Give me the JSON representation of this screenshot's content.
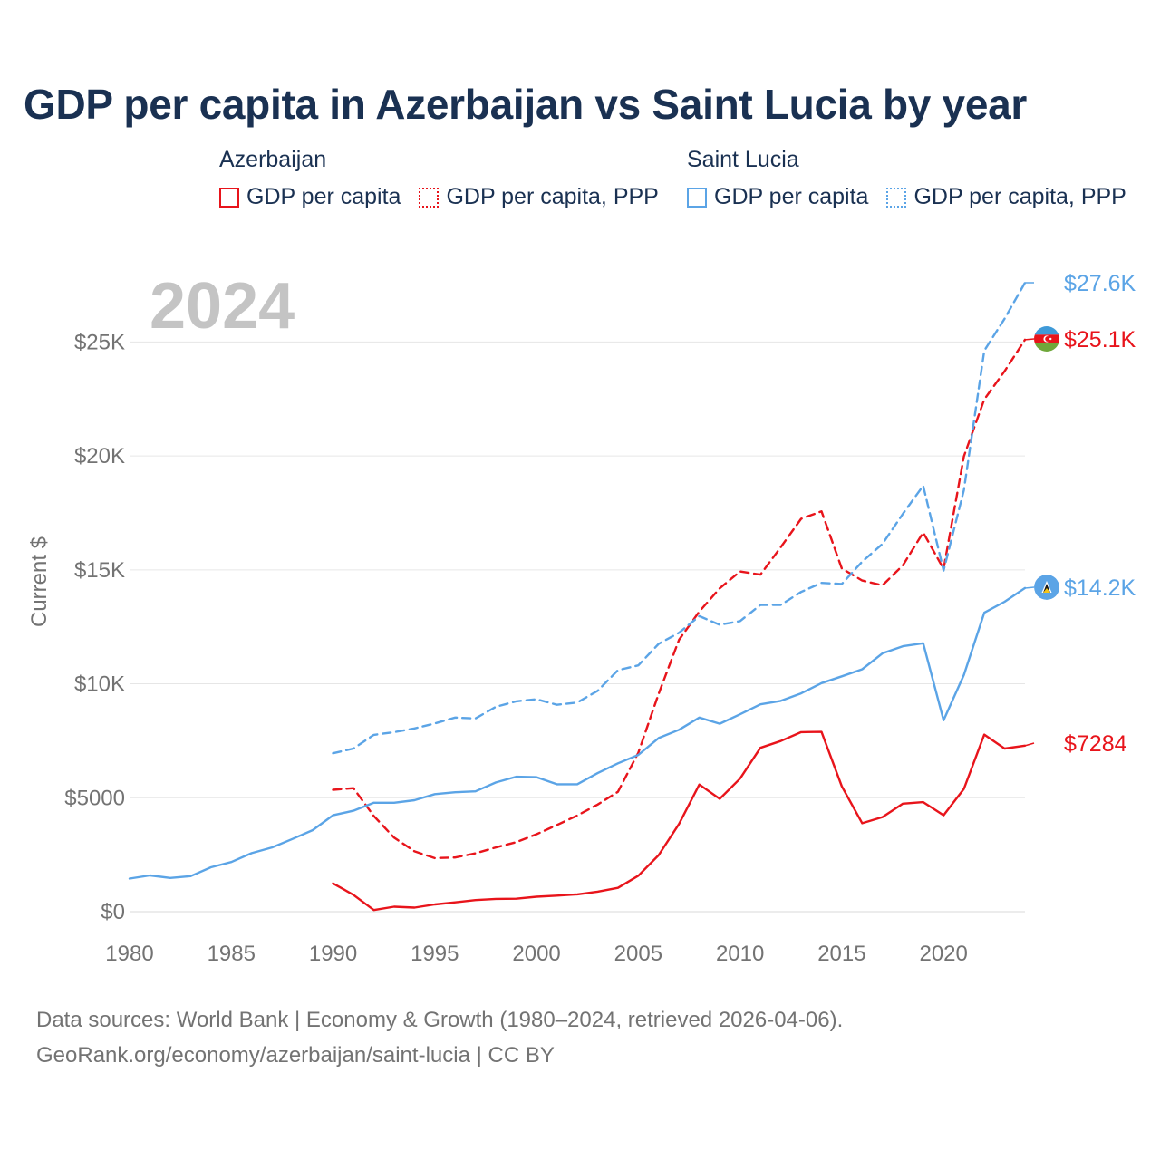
{
  "title": "GDP per capita in Azerbaijan vs Saint Lucia by year",
  "legend": {
    "groups": [
      {
        "name": "Azerbaijan",
        "color": "#e8141b",
        "items": [
          {
            "label": "GDP per capita",
            "style": "solid"
          },
          {
            "label": "GDP per capita, PPP",
            "style": "dotted"
          }
        ]
      },
      {
        "name": "Saint Lucia",
        "color": "#5ba4e6",
        "items": [
          {
            "label": "GDP per capita",
            "style": "solid"
          },
          {
            "label": "GDP per capita, PPP",
            "style": "dotted"
          }
        ]
      }
    ]
  },
  "year_overlay": "2024",
  "footer": {
    "line1": "Data sources: World Bank | Economy & Growth (1980–2024, retrieved 2026-04-06).",
    "line2": "GeoRank.org/economy/azerbaijan/saint-lucia | CC BY"
  },
  "chart_data": {
    "type": "line",
    "title": "GDP per capita in Azerbaijan vs Saint Lucia by year",
    "xlabel": "",
    "ylabel": "Current $",
    "xlim": [
      1980,
      2024
    ],
    "ylim": [
      0,
      27600
    ],
    "x_ticks": [
      1980,
      1985,
      1990,
      1995,
      2000,
      2005,
      2010,
      2015,
      2020
    ],
    "x_tick_labels": [
      "1980",
      "1985",
      "1990",
      "1995",
      "2000",
      "2005",
      "2010",
      "2015",
      "2020"
    ],
    "y_ticks": [
      0,
      5000,
      10000,
      15000,
      20000,
      25000
    ],
    "y_tick_labels": [
      "$0",
      "$5000",
      "$10K",
      "$15K",
      "$20K",
      "$25K"
    ],
    "grid": true,
    "series": [
      {
        "name": "Azerbaijan GDP per capita",
        "country": "Azerbaijan",
        "color": "#e8141b",
        "dash": "solid",
        "start_year": 1990,
        "end_label": "$7284",
        "values": [
          1240,
          740,
          70,
          220,
          180,
          320,
          410,
          510,
          560,
          570,
          655,
          705,
          760,
          880,
          1045,
          1580,
          2480,
          3850,
          5580,
          4950,
          5840,
          7190,
          7490,
          7880,
          7890,
          5500,
          3880,
          4150,
          4740,
          4810,
          4230,
          5390,
          7770,
          7160,
          7284
        ]
      },
      {
        "name": "Azerbaijan GDP per capita, PPP",
        "country": "Azerbaijan",
        "color": "#e8141b",
        "dash": "dashed",
        "start_year": 1990,
        "end_label": "$25.1K",
        "values": [
          5350,
          5420,
          4200,
          3250,
          2650,
          2350,
          2380,
          2560,
          2820,
          3050,
          3400,
          3800,
          4220,
          4700,
          5260,
          6980,
          9560,
          11930,
          13170,
          14190,
          14930,
          14790,
          15990,
          17240,
          17570,
          15060,
          14530,
          14320,
          15200,
          16640,
          15040,
          19980,
          22480,
          23720,
          25100
        ]
      },
      {
        "name": "Saint Lucia GDP per capita",
        "country": "Saint Lucia",
        "color": "#5ba4e6",
        "dash": "solid",
        "start_year": 1980,
        "end_label": "$14.2K",
        "values": [
          1450,
          1590,
          1480,
          1560,
          1950,
          2180,
          2570,
          2820,
          3190,
          3580,
          4230,
          4430,
          4780,
          4780,
          4890,
          5160,
          5240,
          5280,
          5670,
          5920,
          5900,
          5590,
          5590,
          6080,
          6510,
          6880,
          7620,
          7980,
          8520,
          8250,
          8660,
          9100,
          9250,
          9580,
          10030,
          10330,
          10640,
          11340,
          11650,
          11780,
          8400,
          10390,
          13120,
          13600,
          14200
        ]
      },
      {
        "name": "Saint Lucia GDP per capita, PPP",
        "country": "Saint Lucia",
        "color": "#5ba4e6",
        "dash": "dashed",
        "start_year": 1990,
        "end_label": "$27.6K",
        "values": [
          6950,
          7160,
          7760,
          7880,
          8040,
          8260,
          8520,
          8480,
          8990,
          9230,
          9320,
          9080,
          9180,
          9690,
          10600,
          10810,
          11750,
          12240,
          12970,
          12590,
          12750,
          13460,
          13460,
          14030,
          14430,
          14380,
          15360,
          16140,
          17460,
          18690,
          14970,
          18500,
          24620,
          26020,
          27600
        ]
      }
    ]
  }
}
